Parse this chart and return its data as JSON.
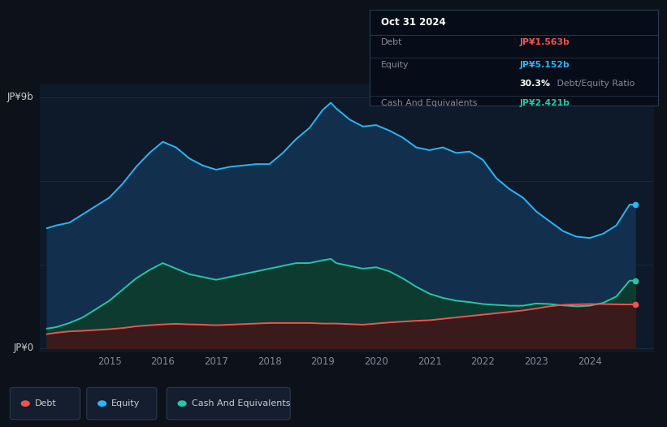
{
  "background_color": "#0d111a",
  "plot_bg_color": "#0e1929",
  "ylabel_top": "JP¥9b",
  "ylabel_bottom": "JP¥0",
  "xlim": [
    2013.7,
    2025.2
  ],
  "ylim": [
    -0.15,
    9.5
  ],
  "x_ticks": [
    2015,
    2016,
    2017,
    2018,
    2019,
    2020,
    2021,
    2022,
    2023,
    2024
  ],
  "equity_color": "#29b6f6",
  "equity_fill": "#12304d",
  "debt_color": "#ef5350",
  "debt_fill": "#3a1a1a",
  "cash_color": "#26c6a6",
  "cash_fill": "#0d3b30",
  "grid_color": "#1a2d40",
  "tick_color": "#888899",
  "tooltip": {
    "date": "Oct 31 2024",
    "debt_label": "Debt",
    "debt_value": "JP¥1.563b",
    "equity_label": "Equity",
    "equity_value": "JP¥5.152b",
    "ratio_bold": "30.3%",
    "ratio_rest": " Debt/Equity Ratio",
    "cash_label": "Cash And Equivalents",
    "cash_value": "JP¥2.421b"
  },
  "legend": [
    {
      "label": "Debt",
      "color": "#ef5350"
    },
    {
      "label": "Equity",
      "color": "#29b6f6"
    },
    {
      "label": "Cash And Equivalents",
      "color": "#26c6a6"
    }
  ],
  "equity_x": [
    2013.83,
    2014.0,
    2014.25,
    2014.5,
    2014.75,
    2015.0,
    2015.25,
    2015.5,
    2015.75,
    2016.0,
    2016.25,
    2016.5,
    2016.75,
    2017.0,
    2017.25,
    2017.5,
    2017.75,
    2018.0,
    2018.25,
    2018.5,
    2018.75,
    2019.0,
    2019.15,
    2019.25,
    2019.5,
    2019.75,
    2020.0,
    2020.25,
    2020.5,
    2020.75,
    2021.0,
    2021.25,
    2021.5,
    2021.75,
    2022.0,
    2022.25,
    2022.5,
    2022.75,
    2023.0,
    2023.25,
    2023.5,
    2023.75,
    2024.0,
    2024.25,
    2024.5,
    2024.75,
    2024.85
  ],
  "equity_y": [
    4.3,
    4.4,
    4.5,
    4.8,
    5.1,
    5.4,
    5.9,
    6.5,
    7.0,
    7.4,
    7.2,
    6.8,
    6.55,
    6.4,
    6.5,
    6.55,
    6.6,
    6.6,
    7.0,
    7.5,
    7.9,
    8.55,
    8.8,
    8.6,
    8.2,
    7.95,
    8.0,
    7.8,
    7.55,
    7.2,
    7.1,
    7.2,
    7.0,
    7.05,
    6.75,
    6.1,
    5.7,
    5.4,
    4.9,
    4.55,
    4.2,
    4.0,
    3.95,
    4.1,
    4.4,
    5.15,
    5.15
  ],
  "debt_x": [
    2013.83,
    2014.0,
    2014.25,
    2014.5,
    2014.75,
    2015.0,
    2015.25,
    2015.5,
    2015.75,
    2016.0,
    2016.25,
    2016.5,
    2016.75,
    2017.0,
    2017.25,
    2017.5,
    2017.75,
    2018.0,
    2018.25,
    2018.5,
    2018.75,
    2019.0,
    2019.25,
    2019.5,
    2019.75,
    2020.0,
    2020.25,
    2020.5,
    2020.75,
    2021.0,
    2021.25,
    2021.5,
    2021.75,
    2022.0,
    2022.25,
    2022.5,
    2022.75,
    2023.0,
    2023.25,
    2023.5,
    2023.75,
    2024.0,
    2024.25,
    2024.5,
    2024.75,
    2024.85
  ],
  "debt_y": [
    0.5,
    0.55,
    0.6,
    0.62,
    0.65,
    0.68,
    0.72,
    0.78,
    0.82,
    0.85,
    0.87,
    0.85,
    0.84,
    0.82,
    0.84,
    0.86,
    0.88,
    0.9,
    0.9,
    0.9,
    0.9,
    0.88,
    0.88,
    0.86,
    0.84,
    0.88,
    0.92,
    0.95,
    0.98,
    1.0,
    1.05,
    1.1,
    1.15,
    1.2,
    1.25,
    1.3,
    1.35,
    1.42,
    1.5,
    1.55,
    1.57,
    1.58,
    1.58,
    1.57,
    1.563,
    1.563
  ],
  "cash_x": [
    2013.83,
    2014.0,
    2014.25,
    2014.5,
    2014.75,
    2015.0,
    2015.25,
    2015.5,
    2015.75,
    2016.0,
    2016.25,
    2016.5,
    2016.75,
    2017.0,
    2017.25,
    2017.5,
    2017.75,
    2018.0,
    2018.25,
    2018.5,
    2018.75,
    2019.0,
    2019.15,
    2019.25,
    2019.5,
    2019.75,
    2020.0,
    2020.25,
    2020.5,
    2020.75,
    2021.0,
    2021.25,
    2021.5,
    2021.75,
    2022.0,
    2022.25,
    2022.5,
    2022.75,
    2023.0,
    2023.25,
    2023.5,
    2023.75,
    2024.0,
    2024.25,
    2024.5,
    2024.75,
    2024.85
  ],
  "cash_y": [
    0.7,
    0.75,
    0.9,
    1.1,
    1.4,
    1.7,
    2.1,
    2.5,
    2.8,
    3.05,
    2.85,
    2.65,
    2.55,
    2.45,
    2.55,
    2.65,
    2.75,
    2.85,
    2.95,
    3.05,
    3.05,
    3.15,
    3.2,
    3.05,
    2.95,
    2.85,
    2.9,
    2.75,
    2.5,
    2.2,
    1.95,
    1.8,
    1.7,
    1.65,
    1.58,
    1.55,
    1.52,
    1.52,
    1.6,
    1.58,
    1.53,
    1.5,
    1.52,
    1.62,
    1.85,
    2.421,
    2.421
  ]
}
